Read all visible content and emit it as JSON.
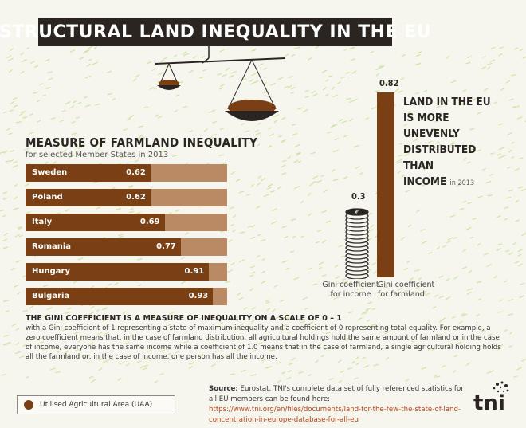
{
  "title": "STRUCTURAL LAND INEQUALITY IN THE EU",
  "section": {
    "title": "MEASURE OF FARMLAND INEQUALITY",
    "subtitle": "for selected Member States in 2013"
  },
  "chart_data": [
    {
      "type": "bar",
      "title": "MEASURE OF FARMLAND INEQUALITY",
      "subtitle": "for selected Member States in 2013",
      "categories": [
        "Sweden",
        "Poland",
        "Italy",
        "Romania",
        "Hungary",
        "Bulgaria"
      ],
      "values": [
        0.62,
        0.62,
        0.69,
        0.77,
        0.91,
        0.93
      ],
      "value_labels": [
        "0.62",
        "0.62",
        "0.69",
        "0.77",
        "0.91",
        "0.93"
      ],
      "xlim": [
        0,
        1
      ],
      "orientation": "horizontal"
    },
    {
      "type": "bar",
      "categories": [
        "Gini coefficient for income",
        "Gini coefficient for farmland"
      ],
      "values": [
        0.3,
        0.82
      ],
      "value_labels": [
        "0.3",
        "0.82"
      ],
      "ylim": [
        0,
        1
      ],
      "orientation": "vertical"
    }
  ],
  "gini_captions": {
    "income_line1": "Gini coefficient",
    "income_line2": "for income",
    "farmland_line1": "Gini coefficient",
    "farmland_line2": "for farmland"
  },
  "claim": {
    "text": "LAND IN THE EU IS MORE UNEVENLY DISTRIBUTED THAN INCOME",
    "line1": "LAND IN THE EU",
    "line2": "IS MORE",
    "line3": "UNEVENLY",
    "line4": "DISTRIBUTED THAN",
    "line5": "INCOME",
    "year": "in 2013"
  },
  "gini_note": {
    "heading": "THE GINI COEFFICIENT IS A MEASURE OF INEQUALITY ON A SCALE OF 0 – 1",
    "body": "with a Gini coefficient of 1 representing a state of maximum inequality and a coefficient of 0 representing total equality. For example, a zero coefficient means that, in the case of farmland distribution, all agricultural holdings hold the same amount of farmland or in the case of income, everyone has the same income while a coefficient of 1.0 means that in the case of farmland, a single agricultural holding holds all the farmland or, in the case of income, one person has all the income."
  },
  "legend": {
    "label": "Utilised Agricultural Area (UAA)"
  },
  "source": {
    "label": "Source:",
    "text": "Eurostat. TNI's complete data set of fully referenced statistics for all EU members can be found here:",
    "url": "https://www.tni.org/en/files/documents/land-for-the-few-the-state-of-land-concentration-in-europe-database-for-all-eu"
  },
  "logo": {
    "text": "tni"
  },
  "colors": {
    "bar_fill": "#7a3f13",
    "bar_track": "#b98a64",
    "title_bg": "#2b2522",
    "background": "#f7f6ee",
    "texture": "#cfe3a7"
  }
}
